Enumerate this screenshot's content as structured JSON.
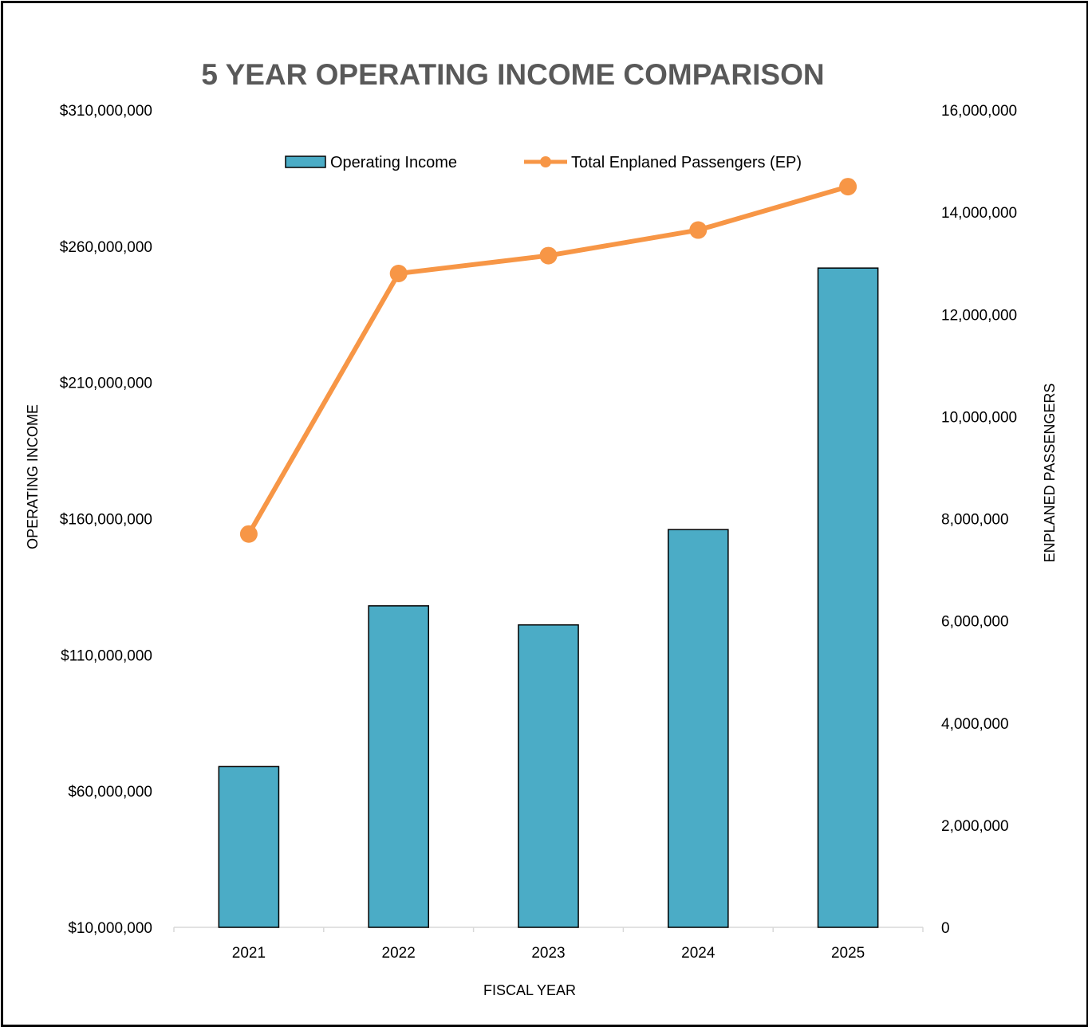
{
  "chart_data": {
    "type": "bar",
    "title": "5 YEAR OPERATING INCOME COMPARISON",
    "xlabel": "FISCAL YEAR",
    "ylabel": "OPERATING INCOME",
    "y2label": "ENPLANED PASSENGERS",
    "categories": [
      "2021",
      "2022",
      "2023",
      "2024",
      "2025"
    ],
    "ylim": [
      10000000,
      310000000
    ],
    "y2lim": [
      0,
      16000000
    ],
    "y_ticks": [
      "$10,000,000",
      "$60,000,000",
      "$110,000,000",
      "$160,000,000",
      "$210,000,000",
      "$260,000,000",
      "$310,000,000"
    ],
    "y2_ticks": [
      "0",
      "2,000,000",
      "4,000,000",
      "6,000,000",
      "8,000,000",
      "10,000,000",
      "12,000,000",
      "14,000,000",
      "16,000,000"
    ],
    "grid": false,
    "legend": "top",
    "series": [
      {
        "name": "Operating Income",
        "type": "bar",
        "axis": "left",
        "color": "#4BACC6",
        "values": [
          69000000,
          128000000,
          121000000,
          156000000,
          252000000
        ]
      },
      {
        "name": "Total Enplaned Passengers (EP)",
        "type": "line",
        "axis": "right",
        "color": "#F79646",
        "values": [
          7700000,
          12800000,
          13150000,
          13650000,
          14500000
        ]
      }
    ]
  }
}
